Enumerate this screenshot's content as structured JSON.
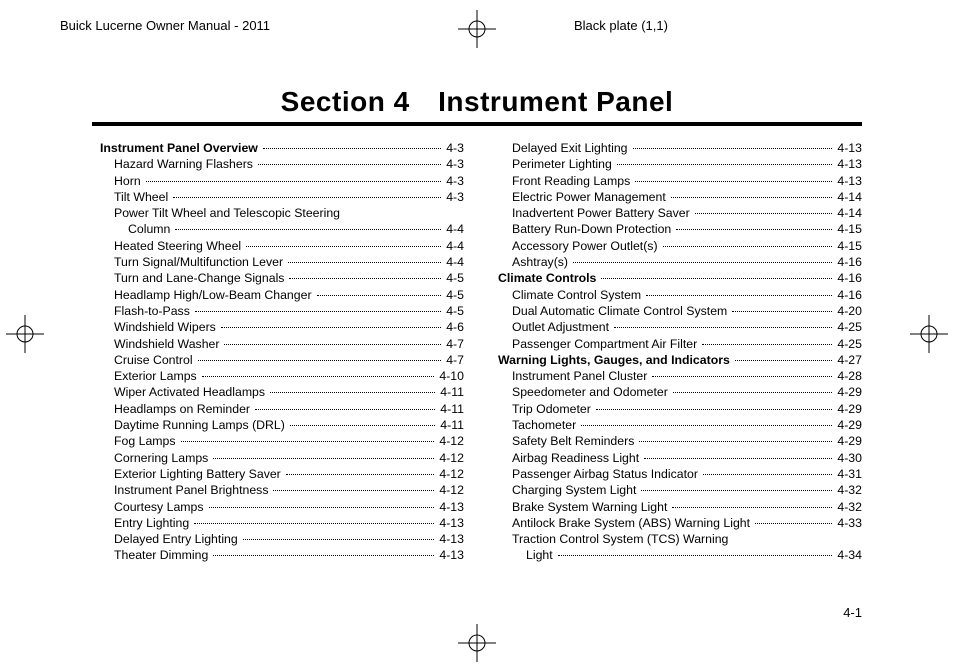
{
  "header": {
    "left": "Buick Lucerne Owner Manual - 2011",
    "right": "Black plate (1,1)"
  },
  "heading": "Section 4 Instrument Panel",
  "page_number": "4-1",
  "registration_mark": {
    "stroke": "#000000",
    "size": 38
  },
  "toc": {
    "columns": [
      [
        {
          "label": "Instrument Panel Overview",
          "page": "4-3",
          "bold": true,
          "indent": 0
        },
        {
          "label": "Hazard Warning Flashers",
          "page": "4-3",
          "indent": 1
        },
        {
          "label": "Horn",
          "page": "4-3",
          "indent": 1
        },
        {
          "label": "Tilt Wheel",
          "page": "4-3",
          "indent": 1
        },
        {
          "label": "Power Tilt Wheel and Telescopic Steering",
          "page": "",
          "indent": 1,
          "nodots": true
        },
        {
          "label": "Column",
          "page": "4-4",
          "indent": 2
        },
        {
          "label": "Heated Steering Wheel",
          "page": "4-4",
          "indent": 1
        },
        {
          "label": "Turn Signal/Multifunction Lever",
          "page": "4-4",
          "indent": 1
        },
        {
          "label": "Turn and Lane-Change Signals",
          "page": "4-5",
          "indent": 1
        },
        {
          "label": "Headlamp High/Low-Beam Changer",
          "page": "4-5",
          "indent": 1
        },
        {
          "label": "Flash-to-Pass",
          "page": "4-5",
          "indent": 1
        },
        {
          "label": "Windshield Wipers",
          "page": "4-6",
          "indent": 1
        },
        {
          "label": "Windshield Washer",
          "page": "4-7",
          "indent": 1
        },
        {
          "label": "Cruise Control",
          "page": "4-7",
          "indent": 1
        },
        {
          "label": "Exterior Lamps",
          "page": "4-10",
          "indent": 1
        },
        {
          "label": "Wiper Activated Headlamps",
          "page": "4-11",
          "indent": 1
        },
        {
          "label": "Headlamps on Reminder",
          "page": "4-11",
          "indent": 1
        },
        {
          "label": "Daytime Running Lamps (DRL)",
          "page": "4-11",
          "indent": 1
        },
        {
          "label": "Fog Lamps",
          "page": "4-12",
          "indent": 1
        },
        {
          "label": "Cornering Lamps",
          "page": "4-12",
          "indent": 1
        },
        {
          "label": "Exterior Lighting Battery Saver",
          "page": "4-12",
          "indent": 1
        },
        {
          "label": "Instrument Panel Brightness",
          "page": "4-12",
          "indent": 1
        },
        {
          "label": "Courtesy Lamps",
          "page": "4-13",
          "indent": 1
        },
        {
          "label": "Entry Lighting",
          "page": "4-13",
          "indent": 1
        },
        {
          "label": "Delayed Entry Lighting",
          "page": "4-13",
          "indent": 1
        },
        {
          "label": "Theater Dimming",
          "page": "4-13",
          "indent": 1
        }
      ],
      [
        {
          "label": "Delayed Exit Lighting",
          "page": "4-13",
          "indent": 1
        },
        {
          "label": "Perimeter Lighting",
          "page": "4-13",
          "indent": 1
        },
        {
          "label": "Front Reading Lamps",
          "page": "4-13",
          "indent": 1
        },
        {
          "label": "Electric Power Management",
          "page": "4-14",
          "indent": 1
        },
        {
          "label": "Inadvertent Power Battery Saver",
          "page": "4-14",
          "indent": 1
        },
        {
          "label": "Battery Run-Down Protection",
          "page": "4-15",
          "indent": 1
        },
        {
          "label": "Accessory Power Outlet(s)",
          "page": "4-15",
          "indent": 1
        },
        {
          "label": "Ashtray(s)",
          "page": "4-16",
          "indent": 1
        },
        {
          "label": "Climate Controls",
          "page": "4-16",
          "bold": true,
          "indent": 0
        },
        {
          "label": "Climate Control System",
          "page": "4-16",
          "indent": 1
        },
        {
          "label": "Dual Automatic Climate Control System",
          "page": "4-20",
          "indent": 1
        },
        {
          "label": "Outlet Adjustment",
          "page": "4-25",
          "indent": 1
        },
        {
          "label": "Passenger Compartment Air Filter",
          "page": "4-25",
          "indent": 1
        },
        {
          "label": "Warning Lights, Gauges, and Indicators",
          "page": "4-27",
          "bold": true,
          "indent": 0
        },
        {
          "label": "Instrument Panel Cluster",
          "page": "4-28",
          "indent": 1
        },
        {
          "label": "Speedometer and Odometer",
          "page": "4-29",
          "indent": 1
        },
        {
          "label": "Trip Odometer",
          "page": "4-29",
          "indent": 1
        },
        {
          "label": "Tachometer",
          "page": "4-29",
          "indent": 1
        },
        {
          "label": "Safety Belt Reminders",
          "page": "4-29",
          "indent": 1
        },
        {
          "label": "Airbag Readiness Light",
          "page": "4-30",
          "indent": 1
        },
        {
          "label": "Passenger Airbag Status Indicator",
          "page": "4-31",
          "indent": 1
        },
        {
          "label": "Charging System Light",
          "page": "4-32",
          "indent": 1
        },
        {
          "label": "Brake System Warning Light",
          "page": "4-32",
          "indent": 1
        },
        {
          "label": "Antilock Brake System (ABS) Warning Light",
          "page": "4-33",
          "indent": 1
        },
        {
          "label": "Traction Control System (TCS) Warning",
          "page": "",
          "indent": 1,
          "nodots": true
        },
        {
          "label": "Light",
          "page": "4-34",
          "indent": 2
        }
      ]
    ]
  }
}
